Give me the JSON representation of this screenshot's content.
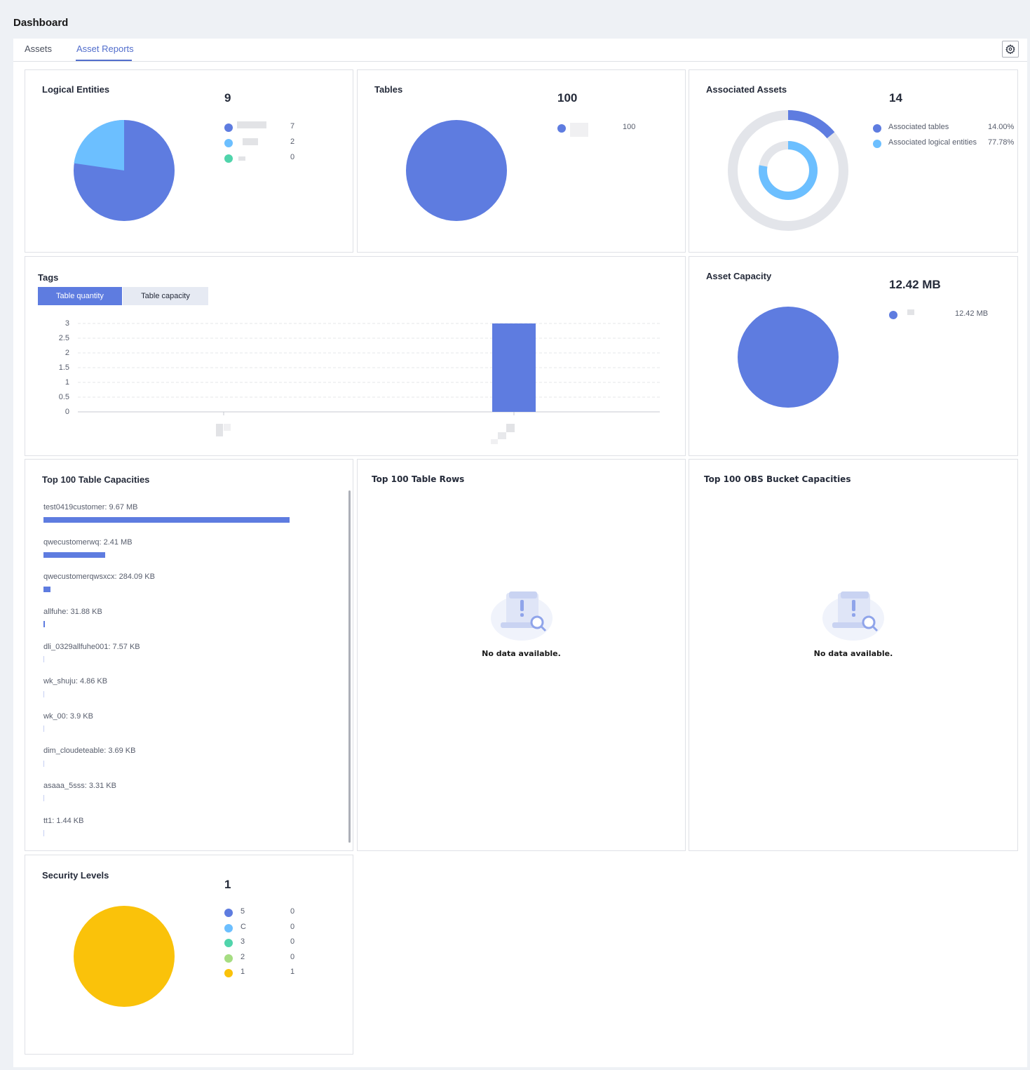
{
  "page_title": "Dashboard",
  "tabs": [
    {
      "label": "Assets",
      "active": false
    },
    {
      "label": "Asset Reports",
      "active": true
    }
  ],
  "settings_icon": "gear-icon",
  "colors": {
    "primary": "#5e7ce0",
    "light_blue": "#6cbfff",
    "green": "#50d4ab",
    "light_green": "#a6dd82",
    "yellow": "#fac20a",
    "track": "#e3e5ea"
  },
  "logical_entities": {
    "title": "Logical Entities",
    "total": "9",
    "legend": [
      {
        "value": "7",
        "color": "#5e7ce0"
      },
      {
        "value": "2",
        "color": "#6cbfff"
      },
      {
        "value": "0",
        "color": "#50d4ab"
      }
    ],
    "chart_data": {
      "type": "pie",
      "values": [
        7,
        2,
        0
      ]
    }
  },
  "tables": {
    "title": "Tables",
    "total": "100",
    "legend": [
      {
        "value": "100",
        "color": "#5e7ce0"
      }
    ],
    "chart_data": {
      "type": "pie",
      "values": [
        100
      ]
    }
  },
  "associated_assets": {
    "title": "Associated Assets",
    "total": "14",
    "legend": [
      {
        "label": "Associated tables",
        "value": "14.00%",
        "color": "#5e7ce0"
      },
      {
        "label": "Associated logical entities",
        "value": "77.78%",
        "color": "#6cbfff"
      }
    ],
    "chart_data": {
      "type": "pie",
      "series": [
        {
          "name": "Associated tables",
          "values": [
            14.0
          ]
        },
        {
          "name": "Associated logical entities",
          "values": [
            77.78
          ]
        }
      ]
    }
  },
  "tags": {
    "title": "Tags",
    "toggle": [
      "Table quantity",
      "Table capacity"
    ],
    "chart_data": {
      "type": "bar",
      "values": [
        0,
        3
      ],
      "ylim": [
        0,
        3
      ],
      "yticks": [
        "3",
        "2.5",
        "2",
        "1.5",
        "1",
        "0.5",
        "0"
      ]
    }
  },
  "asset_capacity": {
    "title": "Asset Capacity",
    "total": "12.42  MB",
    "legend": [
      {
        "value": "12.42  MB",
        "color": "#5e7ce0"
      }
    ],
    "chart_data": {
      "type": "pie",
      "values": [
        12.42
      ]
    }
  },
  "top_capacities": {
    "title": "Top 100 Table Capacities",
    "items": [
      {
        "label": "test0419customer: 9.67  MB",
        "fraction": 1.0
      },
      {
        "label": "qwecustomerwq: 2.41  MB",
        "fraction": 0.25
      },
      {
        "label": "qwecustomerqwsxcx: 284.09  KB",
        "fraction": 0.029
      },
      {
        "label": "allfuhe: 31.88  KB",
        "fraction": 0.005
      },
      {
        "label": "dli_0329allfuhe001: 7.57  KB",
        "fraction": 0.003
      },
      {
        "label": "wk_shuju: 4.86  KB",
        "fraction": 0.003
      },
      {
        "label": "wk_00: 3.9  KB",
        "fraction": 0.003
      },
      {
        "label": "dim_cloudeteable: 3.69  KB",
        "fraction": 0.003
      },
      {
        "label": "asaaa_5sss: 3.31  KB",
        "fraction": 0.003
      },
      {
        "label": "tt1: 1.44  KB",
        "fraction": 0.003
      }
    ],
    "chart_data": {
      "type": "bar",
      "categories": [
        "test0419customer",
        "qwecustomerwq",
        "qwecustomerqwsxcx",
        "allfuhe",
        "dli_0329allfuhe001",
        "wk_shuju",
        "wk_00",
        "dim_cloudeteable",
        "asaaa_5sss",
        "tt1"
      ],
      "values": [
        9.67,
        2.41,
        284.09,
        31.88,
        7.57,
        4.86,
        3.9,
        3.69,
        3.31,
        1.44
      ]
    }
  },
  "top_rows": {
    "title": "Top 100 Table Rows",
    "empty_text": "No data available."
  },
  "top_obs": {
    "title": "Top 100 OBS Bucket Capacities",
    "empty_text": "No data available."
  },
  "security_levels": {
    "title": "Security Levels",
    "total": "1",
    "legend": [
      {
        "label": "5",
        "value": "0",
        "color": "#5e7ce0"
      },
      {
        "label": "C",
        "value": "0",
        "color": "#6cbfff"
      },
      {
        "label": "3",
        "value": "0",
        "color": "#50d4ab"
      },
      {
        "label": "2",
        "value": "0",
        "color": "#a6dd82"
      },
      {
        "label": "1",
        "value": "1",
        "color": "#fac20a"
      }
    ],
    "chart_data": {
      "type": "pie",
      "categories": [
        "5",
        "C",
        "3",
        "2",
        "1"
      ],
      "values": [
        0,
        0,
        0,
        0,
        1
      ]
    }
  }
}
